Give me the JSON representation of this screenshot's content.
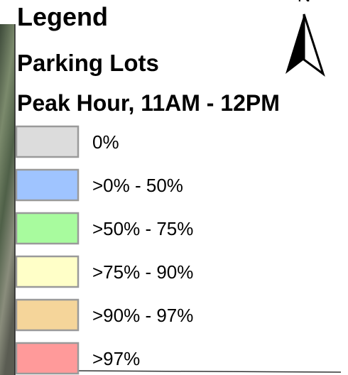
{
  "legend": {
    "title": "Legend",
    "subtitle": "Parking Lots",
    "period": "Peak Hour, 11AM - 12PM",
    "items": [
      {
        "label": "0%",
        "color": "#dcdcdc"
      },
      {
        "label": ">0% - 50%",
        "color": "#9fc4ff"
      },
      {
        "label": ">50% - 75%",
        "color": "#a8fb9e"
      },
      {
        "label": ">75% - 90%",
        "color": "#ffffc8"
      },
      {
        "label": ">90% - 97%",
        "color": "#f5d59a"
      },
      {
        "label": ">97%",
        "color": "#ff9a9a"
      }
    ]
  },
  "north_arrow": {
    "label": "N"
  }
}
